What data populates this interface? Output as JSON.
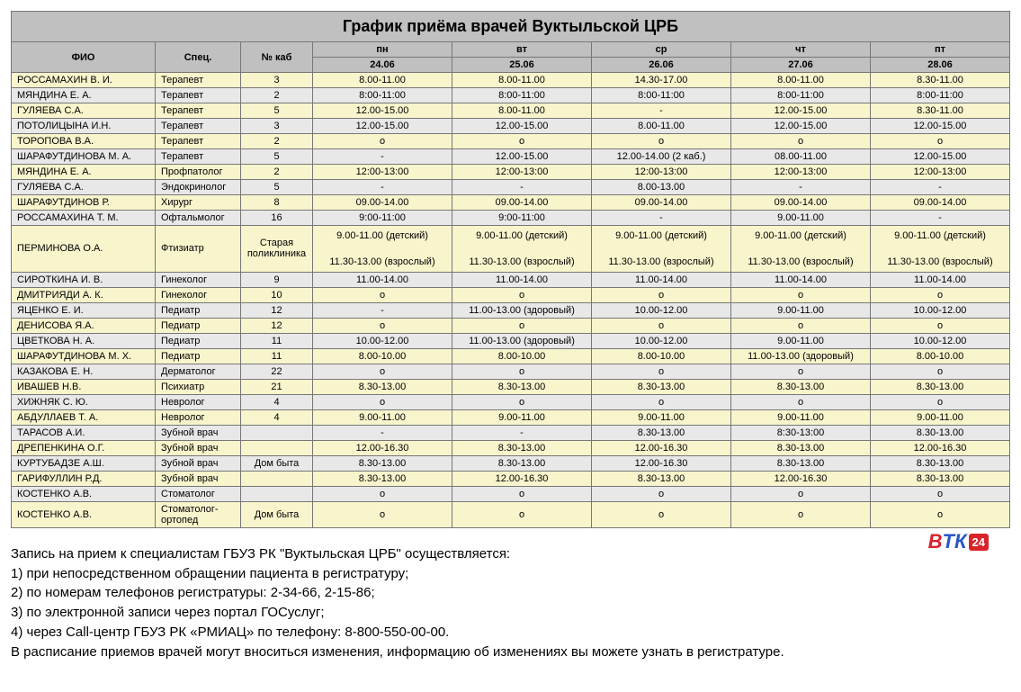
{
  "title": "График приёма врачей Вуктыльской ЦРБ",
  "columns": {
    "fio": "ФИО",
    "spec": "Спец.",
    "room": "№ каб",
    "days": [
      "пн",
      "вт",
      "ср",
      "чт",
      "пт"
    ],
    "dates": [
      "24.06",
      "25.06",
      "26.06",
      "27.06",
      "28.06"
    ]
  },
  "col_widths": [
    "160px",
    "95px",
    "80px",
    "auto",
    "auto",
    "auto",
    "auto",
    "auto"
  ],
  "rows": [
    {
      "fio": "РОССАМАХИН В. И.",
      "spec": "Терапевт",
      "room": "3",
      "cells": [
        "8.00-11.00",
        "8.00-11.00",
        "14.30-17.00",
        "8.00-11.00",
        "8.30-11.00"
      ]
    },
    {
      "fio": "МЯНДИНА Е. А.",
      "spec": "Терапевт",
      "room": "2",
      "cells": [
        "8:00-11:00",
        "8:00-11:00",
        "8:00-11:00",
        "8:00-11:00",
        "8:00-11:00"
      ]
    },
    {
      "fio": "ГУЛЯЕВА С.А.",
      "spec": "Терапевт",
      "room": "5",
      "cells": [
        "12.00-15.00",
        "8.00-11.00",
        "-",
        "12.00-15.00",
        "8.30-11.00"
      ]
    },
    {
      "fio": "ПОТОЛИЦЫНА И.Н.",
      "spec": "Терапевт",
      "room": "3",
      "cells": [
        "12.00-15.00",
        "12.00-15.00",
        "8.00-11.00",
        "12.00-15.00",
        "12.00-15.00"
      ]
    },
    {
      "fio": "ТОРОПОВА В.А.",
      "spec": "Терапевт",
      "room": "2",
      "cells": [
        "о",
        "о",
        "о",
        "о",
        "о"
      ]
    },
    {
      "fio": "ШАРАФУТДИНОВА М. А.",
      "spec": "Терапевт",
      "room": "5",
      "cells": [
        "-",
        "12.00-15.00",
        "12.00-14.00 (2 каб.)",
        "08.00-11.00",
        "12.00-15.00"
      ]
    },
    {
      "fio": "МЯНДИНА Е. А.",
      "spec": "Профпатолог",
      "room": "2",
      "cells": [
        "12:00-13:00",
        "12:00-13:00",
        "12:00-13:00",
        "12:00-13:00",
        "12:00-13:00"
      ]
    },
    {
      "fio": "ГУЛЯЕВА С.А.",
      "spec": "Эндокринолог",
      "room": "5",
      "cells": [
        "-",
        "-",
        "8.00-13.00",
        "-",
        "-"
      ]
    },
    {
      "fio": "ШАРАФУТДИНОВ Р.",
      "spec": "Хирург",
      "room": "8",
      "cells": [
        "09.00-14.00",
        "09.00-14.00",
        "09.00-14.00",
        "09.00-14.00",
        "09.00-14.00"
      ]
    },
    {
      "fio": "РОССАМАХИНА Т. М.",
      "spec": "Офтальмолог",
      "room": "16",
      "cells": [
        "9:00-11:00",
        "9:00-11:00",
        "-",
        "9.00-11.00",
        "-"
      ]
    },
    {
      "fio": "ПЕРМИНОВА О.А.",
      "spec": "Фтизиатр",
      "room": "Старая поликлиника",
      "multiline": true,
      "cells": [
        "9.00-11.00 (детский)\n\n11.30-13.00 (взрослый)",
        "9.00-11.00 (детский)\n\n11.30-13.00 (взрослый)",
        "9.00-11.00 (детский)\n\n11.30-13.00 (взрослый)",
        "9.00-11.00 (детский)\n\n11.30-13.00 (взрослый)",
        "9.00-11.00 (детский)\n\n11.30-13.00 (взрослый)"
      ]
    },
    {
      "fio": "СИРОТКИНА И. В.",
      "spec": "Гинеколог",
      "room": "9",
      "cells": [
        "11.00-14.00",
        "11.00-14.00",
        "11.00-14.00",
        "11.00-14.00",
        "11.00-14.00"
      ]
    },
    {
      "fio": "ДМИТРИЯДИ А. К.",
      "spec": "Гинеколог",
      "room": "10",
      "cells": [
        "о",
        "о",
        "о",
        "о",
        "о"
      ]
    },
    {
      "fio": "ЯЦЕНКО Е. И.",
      "spec": "Педиатр",
      "room": "12",
      "cells": [
        "-",
        "11.00-13.00 (здоровый)",
        "10.00-12.00",
        "9.00-11.00",
        "10.00-12.00"
      ]
    },
    {
      "fio": "ДЕНИСОВА Я.А.",
      "spec": "Педиатр",
      "room": "12",
      "cells": [
        "о",
        "о",
        "о",
        "о",
        "о"
      ]
    },
    {
      "fio": "ЦВЕТКОВА Н. А.",
      "spec": "Педиатр",
      "room": "11",
      "cells": [
        "10.00-12.00",
        "11.00-13.00 (здоровый)",
        "10.00-12.00",
        "9.00-11.00",
        "10.00-12.00"
      ]
    },
    {
      "fio": "ШАРАФУТДИНОВА М. Х.",
      "spec": "Педиатр",
      "room": "11",
      "cells": [
        "8.00-10.00",
        "8.00-10.00",
        "8.00-10.00",
        "11.00-13.00 (здоровый)",
        "8.00-10.00"
      ]
    },
    {
      "fio": "КАЗАКОВА Е. Н.",
      "spec": "Дерматолог",
      "room": "22",
      "cells": [
        "о",
        "о",
        "о",
        "о",
        "о"
      ]
    },
    {
      "fio": "ИВАШЕВ Н.В.",
      "spec": "Психиатр",
      "room": "21",
      "cells": [
        "8.30-13.00",
        "8.30-13.00",
        "8.30-13.00",
        "8.30-13.00",
        "8.30-13.00"
      ]
    },
    {
      "fio": "ХИЖНЯК С. Ю.",
      "spec": "Невролог",
      "room": "4",
      "cells": [
        "о",
        "о",
        "о",
        "о",
        "о"
      ]
    },
    {
      "fio": "АБДУЛЛАЕВ Т. А.",
      "spec": "Невролог",
      "room": "4",
      "cells": [
        "9.00-11.00",
        "9.00-11.00",
        "9.00-11.00",
        "9.00-11.00",
        "9.00-11.00"
      ]
    },
    {
      "fio": "ТАРАСОВ А.И.",
      "spec": "Зубной врач",
      "room": "",
      "cells": [
        "-",
        "-",
        "8.30-13.00",
        "8:30-13:00",
        "8.30-13.00"
      ]
    },
    {
      "fio": "ДРЕПЕНКИНА О.Г.",
      "spec": "Зубной врач",
      "room": "",
      "cells": [
        "12.00-16.30",
        "8.30-13.00",
        "12.00-16.30",
        "8.30-13.00",
        "12.00-16.30"
      ]
    },
    {
      "fio": "КУРТУБАДЗЕ А.Ш.",
      "spec": "Зубной врач",
      "room": "Дом быта",
      "cells": [
        "8.30-13.00",
        "8.30-13.00",
        "12.00-16.30",
        "8.30-13.00",
        "8.30-13.00"
      ]
    },
    {
      "fio": "ГАРИФУЛЛИН Р.Д.",
      "spec": "Зубной врач",
      "room": "",
      "cells": [
        "8.30-13.00",
        "12.00-16.30",
        "8.30-13.00",
        "12.00-16.30",
        "8.30-13.00"
      ]
    },
    {
      "fio": "КОСТЕНКО А.В.",
      "spec": "Стоматолог",
      "room": "",
      "cells": [
        "о",
        "о",
        "о",
        "о",
        "о"
      ]
    },
    {
      "fio": "КОСТЕНКО А.В.",
      "spec": "Стоматолог-ортопед",
      "room": "Дом быта",
      "cells": [
        "о",
        "о",
        "о",
        "о",
        "о"
      ]
    }
  ],
  "notes": [
    "Запись на прием к специалистам ГБУЗ РК \"Вуктыльская ЦРБ\" осуществляется:",
    "1) при непосредственном обращении пациента в регистратуру;",
    "2) по номерам телефонов регистратуры: 2-34-66, 2-15-86;",
    "3) по электронной записи через портал ГОСуслуг;",
    "4) через Call-центр ГБУЗ РК «РМИАЦ» по телефону: 8-800-550-00-00.",
    "В расписание приемов врачей могут вноситься изменения, информацию об изменениях вы можете узнать в регистратуре."
  ],
  "logo": {
    "v": "В",
    "t": "Т",
    "k": "К",
    "num": "24"
  }
}
